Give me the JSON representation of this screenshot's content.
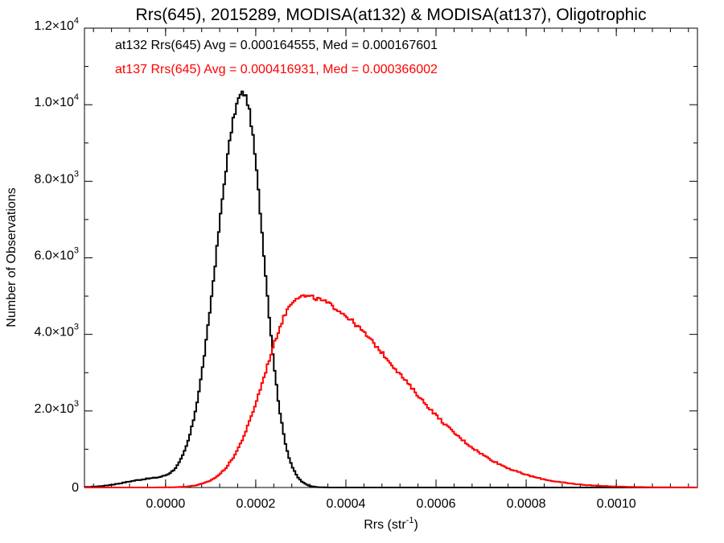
{
  "chart_data": {
    "type": "histogram",
    "title": "Rrs(645), 2015289, MODISA(at132) & MODISA(at137), Oligotrophic",
    "xlabel": {
      "main": "Rrs (str",
      "sup": "-1",
      "end": ")"
    },
    "ylabel": "Number of Observations",
    "xlim": [
      -0.00018,
      0.00118
    ],
    "ylim": [
      0,
      12000
    ],
    "x_ticks": [
      {
        "value": 0.0,
        "label": "0.0000"
      },
      {
        "value": 0.0002,
        "label": "0.0002"
      },
      {
        "value": 0.0004,
        "label": "0.0004"
      },
      {
        "value": 0.0006,
        "label": "0.0006"
      },
      {
        "value": 0.0008,
        "label": "0.0008"
      },
      {
        "value": 0.001,
        "label": "0.0010"
      }
    ],
    "y_ticks": [
      {
        "value": 0,
        "mant": "0",
        "exp": ""
      },
      {
        "value": 2000,
        "mant": "2.0×10",
        "exp": "3"
      },
      {
        "value": 4000,
        "mant": "4.0×10",
        "exp": "3"
      },
      {
        "value": 6000,
        "mant": "6.0×10",
        "exp": "3"
      },
      {
        "value": 8000,
        "mant": "8.0×10",
        "exp": "3"
      },
      {
        "value": 10000,
        "mant": "1.0×10",
        "exp": "4"
      },
      {
        "value": 12000,
        "mant": "1.2×10",
        "exp": "4"
      }
    ],
    "bin_width": 4e-06,
    "series": [
      {
        "name": "at132",
        "color": "#000000",
        "stats_text": "at132 Rrs(645) Avg = 0.000164555, Med = 0.000167601",
        "shape": {
          "peak_x": 0.000172,
          "peak_y": 10300,
          "sigma_left": 5.8e-05,
          "sigma_right": 4.5e-05,
          "tail_amp": 220,
          "tail_center": -3e-05,
          "tail_sigma": 6e-05
        },
        "range": [
          -0.00018,
          0.00118
        ]
      },
      {
        "name": "at137",
        "color": "#ff0000",
        "stats_text": "at137 Rrs(645) Avg = 0.000416931, Med = 0.000366002",
        "shape": {
          "peak_x": 0.0003,
          "peak_y": 5000,
          "sigma_left": 7.8e-05,
          "sigma_right": 0.000215
        },
        "range": [
          -0.00018,
          0.00118
        ]
      }
    ]
  }
}
